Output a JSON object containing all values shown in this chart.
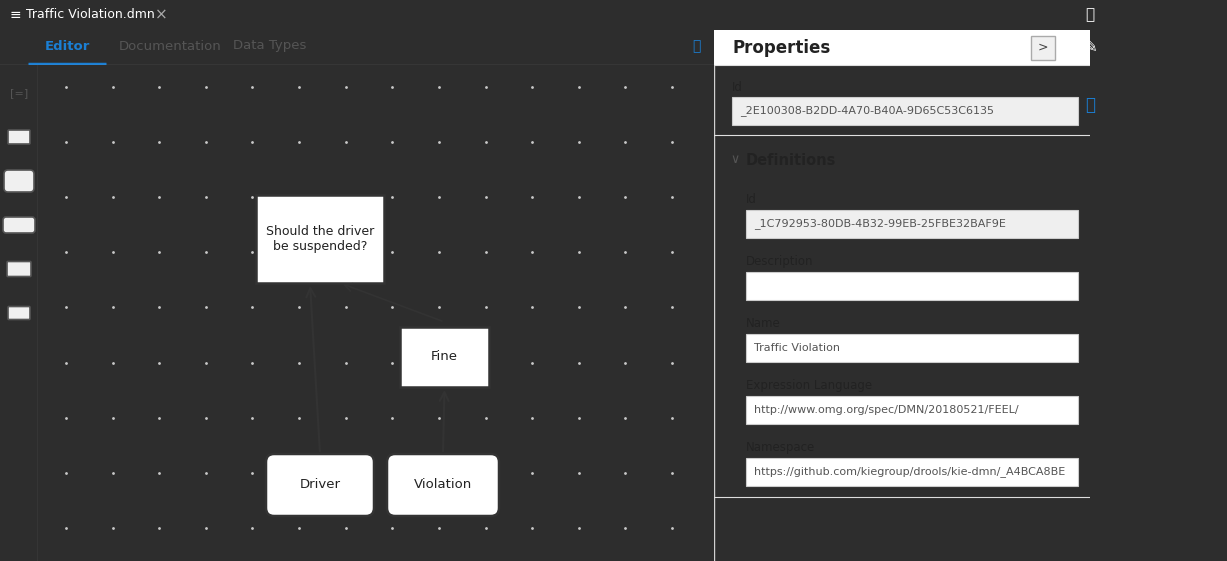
{
  "fig_width": 12.27,
  "fig_height": 5.61,
  "dpi": 100,
  "bg_dark": "#2d2d2d",
  "bg_white": "#ffffff",
  "bg_canvas": "#ffffff",
  "bg_sidebar": "#f0f0f0",
  "active_tab_color": "#1b7fd4",
  "tab_text_color": "#555555",
  "dot_color": "#c8c8c8",
  "node_border": "#333333",
  "node_bg": "#ffffff",
  "arrow_color": "#333333",
  "title_bar_text": "Traffic Violation.dmn",
  "tabs": [
    "Editor",
    "Documentation",
    "Data Types"
  ],
  "suspended_text": "Should the driver\nbe suspended?",
  "fine_text": "Fine",
  "driver_text": "Driver",
  "violation_text": "Violation",
  "properties_title": "Properties",
  "prop_id_label": "Id",
  "prop_id_value": "_2E100308-B2DD-4A70-B40A-9D65C53C6135",
  "definitions_label": "Definitions",
  "def_id_label": "Id",
  "def_id_value": "_1C792953-80DB-4B32-99EB-25FBE32BAF9E",
  "desc_label": "Description",
  "desc_value": "",
  "name_label": "Name",
  "name_value": "Traffic Violation",
  "expr_lang_label": "Expression Language",
  "expr_lang_value": "http://www.omg.org/spec/DMN/20180521/FEEL/",
  "namespace_label": "Namespace",
  "namespace_value": "https://github.com/kiegroup/drools/kie-dmn/_A4BCA8BE"
}
